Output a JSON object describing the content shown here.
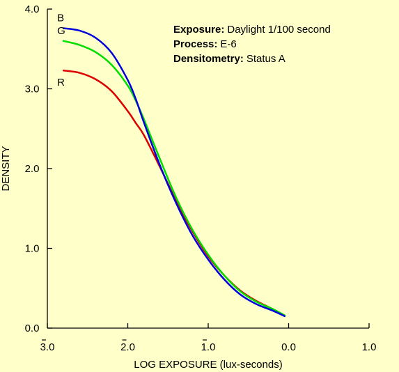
{
  "chart_data": {
    "type": "line",
    "title": "",
    "xlabel": "LOG EXPOSURE (lux-seconds)",
    "ylabel": "DENSITY",
    "xlim": [
      -3.0,
      1.0
    ],
    "ylim": [
      0.0,
      4.0
    ],
    "xticks": [
      {
        "value": -3.0,
        "label": "3.0",
        "bar": true
      },
      {
        "value": -2.0,
        "label": "2.0",
        "bar": true
      },
      {
        "value": -1.0,
        "label": "1.0",
        "bar": true
      },
      {
        "value": 0.0,
        "label": "0.0",
        "bar": false
      },
      {
        "value": 1.0,
        "label": "1.0",
        "bar": false
      }
    ],
    "yticks": [
      {
        "value": 0.0,
        "label": "0.0"
      },
      {
        "value": 1.0,
        "label": "1.0"
      },
      {
        "value": 2.0,
        "label": "2.0"
      },
      {
        "value": 3.0,
        "label": "3.0"
      },
      {
        "value": 4.0,
        "label": "4.0"
      }
    ],
    "grid": false,
    "series": [
      {
        "name": "B",
        "color": "#0000dd",
        "x": [
          -2.8,
          -2.6,
          -2.4,
          -2.2,
          -2.0,
          -1.9,
          -1.8,
          -1.6,
          -1.4,
          -1.2,
          -1.0,
          -0.8,
          -0.6,
          -0.4,
          -0.2,
          -0.05
        ],
        "y": [
          3.76,
          3.73,
          3.64,
          3.45,
          3.11,
          2.87,
          2.58,
          2.04,
          1.57,
          1.17,
          0.86,
          0.61,
          0.42,
          0.3,
          0.22,
          0.15
        ]
      },
      {
        "name": "G",
        "color": "#00dd00",
        "x": [
          -2.8,
          -2.6,
          -2.4,
          -2.2,
          -2.0,
          -1.9,
          -1.8,
          -1.6,
          -1.4,
          -1.2,
          -1.0,
          -0.8,
          -0.6,
          -0.4,
          -0.2,
          -0.05
        ],
        "y": [
          3.6,
          3.55,
          3.46,
          3.3,
          3.04,
          2.85,
          2.62,
          2.12,
          1.64,
          1.24,
          0.92,
          0.66,
          0.46,
          0.33,
          0.24,
          0.16
        ]
      },
      {
        "name": "R",
        "color": "#dd0000",
        "x": [
          -2.8,
          -2.6,
          -2.4,
          -2.2,
          -2.0,
          -1.9,
          -1.8,
          -1.6,
          -1.4,
          -1.2,
          -1.0,
          -0.8,
          -0.6,
          -0.4,
          -0.2,
          -0.05
        ],
        "y": [
          3.23,
          3.2,
          3.12,
          2.97,
          2.72,
          2.57,
          2.42,
          2.02,
          1.6,
          1.22,
          0.9,
          0.66,
          0.47,
          0.34,
          0.24,
          0.16
        ]
      }
    ],
    "annotations": [
      {
        "key": "Exposure:",
        "value": "Daylight 1/100 second"
      },
      {
        "key": "Process:",
        "value": "E-6"
      },
      {
        "key": "Densitometry:",
        "value": "Status A"
      }
    ]
  }
}
